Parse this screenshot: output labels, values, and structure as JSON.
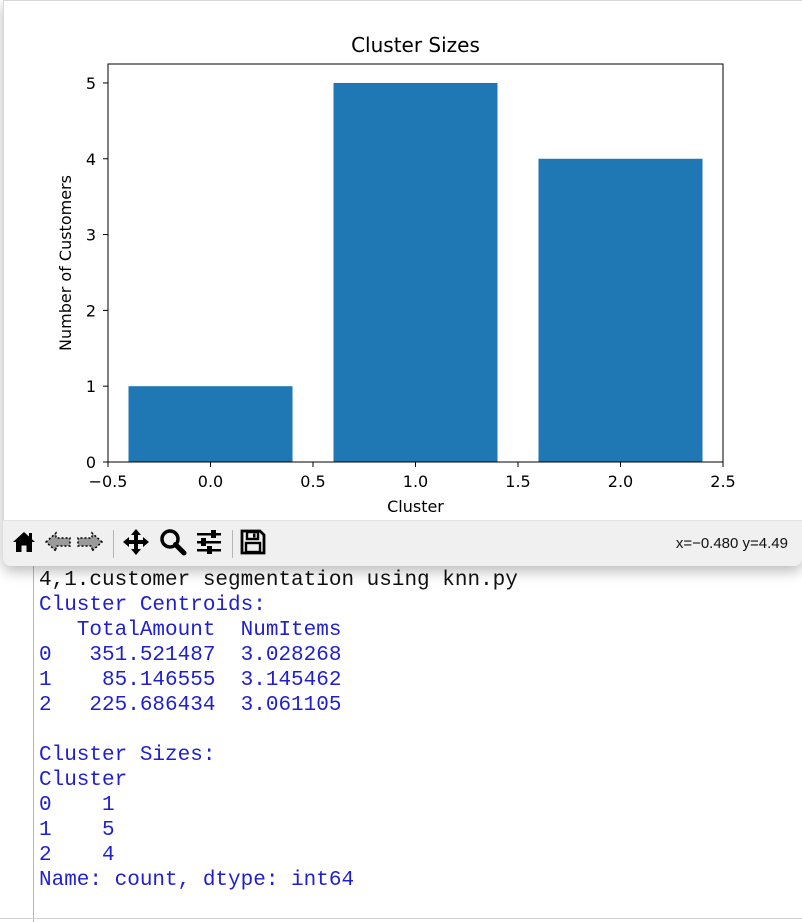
{
  "console": {
    "lines": [
      {
        "text": "4,1.customer segmentation using knn.py",
        "kind": "cmd"
      },
      {
        "text": "Cluster Centroids:",
        "kind": "out"
      },
      {
        "text": "   TotalAmount  NumItems",
        "kind": "out"
      },
      {
        "text": "0   351.521487  3.028268",
        "kind": "out"
      },
      {
        "text": "1    85.146555  3.145462",
        "kind": "out"
      },
      {
        "text": "2   225.686434  3.061105",
        "kind": "out"
      },
      {
        "text": "",
        "kind": "out"
      },
      {
        "text": "Cluster Sizes:",
        "kind": "out"
      },
      {
        "text": "Cluster",
        "kind": "out"
      },
      {
        "text": "0    1",
        "kind": "out"
      },
      {
        "text": "1    5",
        "kind": "out"
      },
      {
        "text": "2    4",
        "kind": "out"
      },
      {
        "text": "Name: count, dtype: int64",
        "kind": "out"
      }
    ],
    "colors": {
      "command": "#111111",
      "output": "#1f1fd0"
    }
  },
  "figure": {
    "toolbar": {
      "buttons": [
        "home-icon",
        "back-icon",
        "forward-icon",
        "pan-icon",
        "zoom-icon",
        "configure-subplots-icon",
        "save-icon"
      ],
      "coordinates": "x=−0.480 y=4.49"
    }
  },
  "chart_data": {
    "type": "bar",
    "title": "Cluster Sizes",
    "xlabel": "Cluster",
    "ylabel": "Number of Customers",
    "x": [
      0,
      1,
      2
    ],
    "values": [
      1,
      5,
      4
    ],
    "bar_width": 0.8,
    "xlim": [
      -0.5,
      2.5
    ],
    "ylim": [
      0,
      5.25
    ],
    "xticks": [
      -0.5,
      0.0,
      0.5,
      1.0,
      1.5,
      2.0,
      2.5
    ],
    "xtick_labels": [
      "−0.5",
      "0.0",
      "0.5",
      "1.0",
      "1.5",
      "2.0",
      "2.5"
    ],
    "yticks": [
      0,
      1,
      2,
      3,
      4,
      5
    ],
    "ytick_labels": [
      "0",
      "1",
      "2",
      "3",
      "4",
      "5"
    ],
    "grid": false,
    "bar_color": "#1f77b4"
  }
}
